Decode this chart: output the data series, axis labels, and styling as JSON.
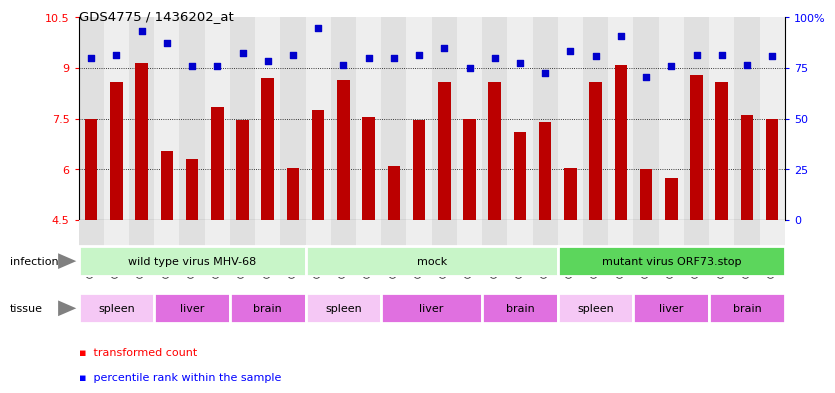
{
  "title": "GDS4775 / 1436202_at",
  "samples": [
    "GSM1243471",
    "GSM1243472",
    "GSM1243473",
    "GSM1243462",
    "GSM1243463",
    "GSM1243464",
    "GSM1243480",
    "GSM1243481",
    "GSM1243482",
    "GSM1243468",
    "GSM1243469",
    "GSM1243470",
    "GSM1243458",
    "GSM1243459",
    "GSM1243460",
    "GSM1243461",
    "GSM1243477",
    "GSM1243478",
    "GSM1243479",
    "GSM1243474",
    "GSM1243475",
    "GSM1243476",
    "GSM1243465",
    "GSM1243466",
    "GSM1243467",
    "GSM1243483",
    "GSM1243484",
    "GSM1243485"
  ],
  "bar_values": [
    7.5,
    8.6,
    9.15,
    6.55,
    6.3,
    7.85,
    7.45,
    8.7,
    6.05,
    7.75,
    8.65,
    7.55,
    6.1,
    7.45,
    8.6,
    7.5,
    8.6,
    7.1,
    7.4,
    6.05,
    8.6,
    9.1,
    6.0,
    5.75,
    8.8,
    8.6,
    7.6,
    7.5
  ],
  "blue_values": [
    9.3,
    9.4,
    10.1,
    9.75,
    9.05,
    9.05,
    9.45,
    9.2,
    9.4,
    10.2,
    9.1,
    9.3,
    9.3,
    9.4,
    9.6,
    9.0,
    9.3,
    9.15,
    8.85,
    9.5,
    9.35,
    9.95,
    8.75,
    9.05,
    9.4,
    9.4,
    9.1,
    9.35
  ],
  "infection_groups": [
    {
      "label": "wild type virus MHV-68",
      "start": 0,
      "end": 9,
      "color": "#C8F5C8"
    },
    {
      "label": "mock",
      "start": 9,
      "end": 19,
      "color": "#C8F5C8"
    },
    {
      "label": "mutant virus ORF73.stop",
      "start": 19,
      "end": 28,
      "color": "#5CD65C"
    }
  ],
  "tissue_groups": [
    {
      "label": "spleen",
      "start": 0,
      "end": 3,
      "color": "#F5C8F5"
    },
    {
      "label": "liver",
      "start": 3,
      "end": 6,
      "color": "#E070E0"
    },
    {
      "label": "brain",
      "start": 6,
      "end": 9,
      "color": "#E070E0"
    },
    {
      "label": "spleen",
      "start": 9,
      "end": 12,
      "color": "#F5C8F5"
    },
    {
      "label": "liver",
      "start": 12,
      "end": 16,
      "color": "#E070E0"
    },
    {
      "label": "brain",
      "start": 16,
      "end": 19,
      "color": "#E070E0"
    },
    {
      "label": "spleen",
      "start": 19,
      "end": 22,
      "color": "#F5C8F5"
    },
    {
      "label": "liver",
      "start": 22,
      "end": 25,
      "color": "#E070E0"
    },
    {
      "label": "brain",
      "start": 25,
      "end": 28,
      "color": "#E070E0"
    }
  ],
  "ylim_left": [
    4.5,
    10.5
  ],
  "ylim_right": [
    0,
    100
  ],
  "yticks_left": [
    4.5,
    6.0,
    7.5,
    9.0,
    10.5
  ],
  "yticks_right": [
    0,
    25,
    50,
    75,
    100
  ],
  "bar_color": "#BB0000",
  "dot_color": "#0000CC",
  "col_bg_odd": "#E0E0E0",
  "col_bg_even": "#EEEEEE",
  "xtick_bg": "#D8D8D8"
}
